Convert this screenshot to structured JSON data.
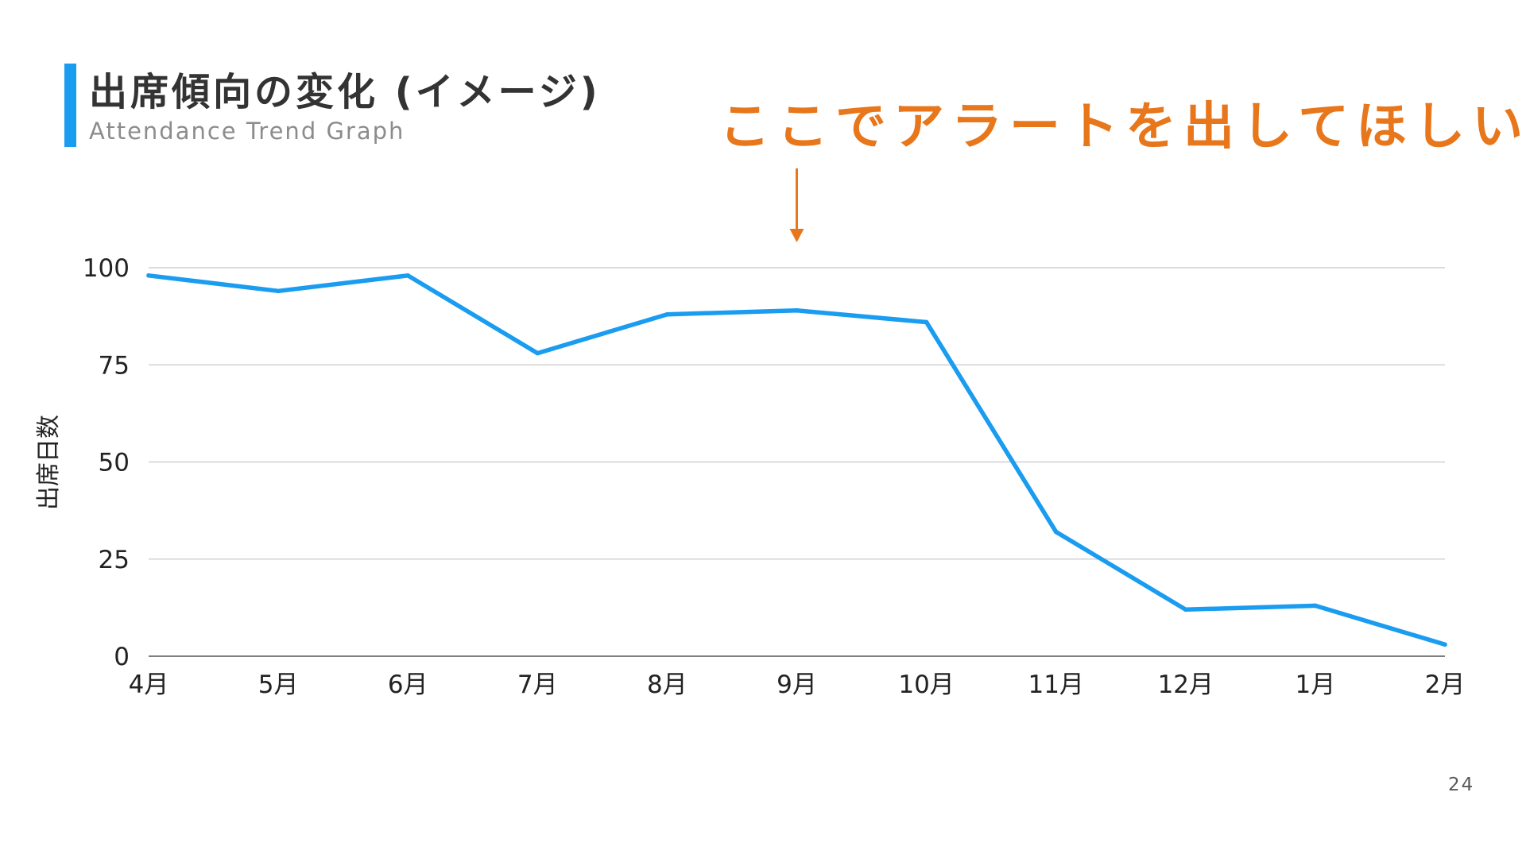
{
  "header": {
    "title": "出席傾向の変化 (イメージ)",
    "subtitle": "Attendance Trend Graph"
  },
  "callout": {
    "text": "ここでアラートを出してほしい",
    "color": "#e8761a",
    "target_category": "9月"
  },
  "page_number": "24",
  "colors": {
    "accent": "#1a9cf0",
    "line": "#1a9cf0",
    "gridline": "#c8c8c8",
    "callout": "#e8761a"
  },
  "chart_data": {
    "type": "line",
    "title": "",
    "xlabel": "",
    "ylabel": "出席日数",
    "categories": [
      "4月",
      "5月",
      "6月",
      "7月",
      "8月",
      "9月",
      "10月",
      "11月",
      "12月",
      "1月",
      "2月"
    ],
    "values": [
      98,
      94,
      98,
      78,
      88,
      89,
      86,
      32,
      12,
      13,
      3
    ],
    "ylim": [
      0,
      100
    ],
    "yticks": [
      0,
      25,
      50,
      75,
      100
    ],
    "grid": true,
    "legend": "none"
  }
}
